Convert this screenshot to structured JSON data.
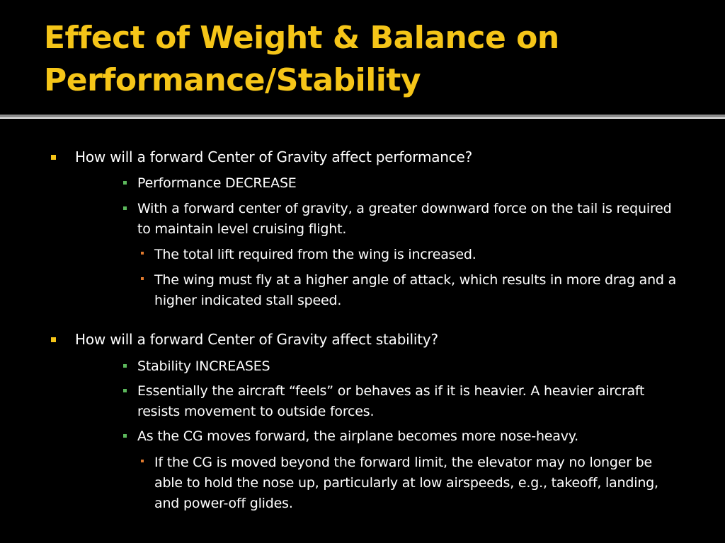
{
  "slide": {
    "title_line1": "Effect of Weight & Balance on",
    "title_line2": "Performance/Stability",
    "colors": {
      "background": "#000000",
      "title": "#F5C518",
      "text": "#FFFFFF",
      "bullet_level1": "#F5C518",
      "bullet_level2": "#5CB85C",
      "bullet_level3": "#E07A2E"
    }
  },
  "sections": [
    {
      "question": "How will a forward Center of Gravity affect performance?",
      "points": [
        {
          "text": "Performance DECREASE"
        },
        {
          "text": "With a forward center of gravity, a greater downward force on the tail is required to maintain level cruising flight.",
          "subpoints": [
            "The total lift required from the wing is increased.",
            "The wing must fly at a higher angle of attack, which results in more drag and a higher indicated stall speed."
          ]
        }
      ]
    },
    {
      "question": "How will a forward Center of Gravity affect stability?",
      "points": [
        {
          "text": "Stability INCREASES"
        },
        {
          "text": "Essentially the aircraft “feels” or behaves as if it is heavier.  A heavier aircraft resists movement to outside forces."
        },
        {
          "text": "As the CG moves forward, the airplane becomes more nose-heavy.",
          "subpoints": [
            "If the CG is moved beyond the forward limit, the elevator may no longer be able to hold the nose up, particularly at low airspeeds, e.g., takeoff, landing, and power-off glides."
          ]
        }
      ]
    }
  ]
}
